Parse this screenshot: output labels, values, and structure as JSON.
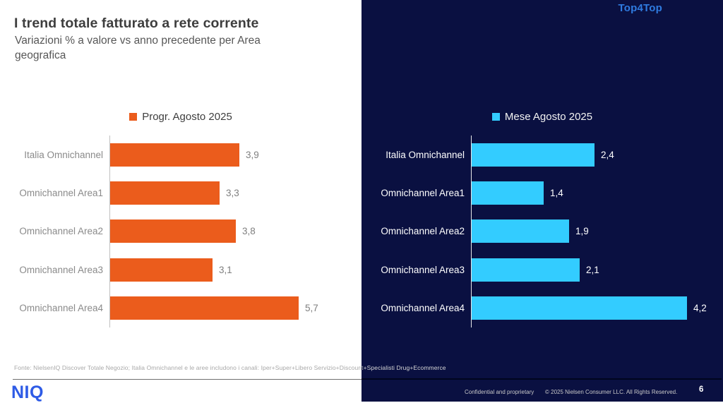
{
  "slide": {
    "title": "I trend totale fatturato a rete corrente",
    "subtitle": "Variazioni % a valore vs anno precedente per Area geografica",
    "top_right_label": "Top4Top",
    "footer_source_left": "Fonte: NielsenIQ Discover Totale Negozio; Italia Omnichannel e le aree includono i canali: Iper+Super+Libero Servizio+Discount",
    "footer_source_right": "+Specialisti Drug+Ecommerce",
    "logo_text": "NIQ",
    "confidential": "Confidential and proprietary",
    "copyright": "© 2025 Nielsen Consumer LLC. All Rights Reserved.",
    "page_number": "6"
  },
  "colors": {
    "navy_panel": "#0A1041",
    "orange_bar": "#EB5C1C",
    "cyan_bar": "#33CCFF",
    "title_text": "#3E3E3E",
    "subtitle_text": "#575757",
    "top4top_blue": "#2F7BE0",
    "niq_blue": "#2E5BE6",
    "left_axis": "#C0C0C0",
    "right_axis": "#E6E6E6",
    "gray_labels": "#8A8A8A"
  },
  "chart_data": [
    {
      "type": "bar",
      "orientation": "horizontal",
      "title": "I trend totale fatturato a rete corrente",
      "legend": "Progr. Agosto 2025",
      "legend_position": "top-center",
      "grid": false,
      "categories": [
        "Italia Omnichannel",
        "Omnichannel Area1",
        "Omnichannel Area2",
        "Omnichannel Area3",
        "Omnichannel Area4"
      ],
      "values": [
        3.9,
        3.3,
        3.8,
        3.1,
        5.7
      ],
      "value_labels": [
        "3,9",
        "3,3",
        "3,8",
        "3,1",
        "5,7"
      ],
      "bar_color": "#EB5C1C",
      "xlim": [
        0,
        7.6
      ]
    },
    {
      "type": "bar",
      "orientation": "horizontal",
      "title": "I trend totale fatturato a rete corrente",
      "legend": "Mese Agosto 2025",
      "legend_position": "top-center",
      "grid": false,
      "categories": [
        "Italia Omnichannel",
        "Omnichannel Area1",
        "Omnichannel Area2",
        "Omnichannel Area3",
        "Omnichannel Area4"
      ],
      "values": [
        2.4,
        1.4,
        1.9,
        2.1,
        4.2
      ],
      "value_labels": [
        "2,4",
        "1,4",
        "1,9",
        "2,1",
        "4,2"
      ],
      "bar_color": "#33CCFF",
      "xlim": [
        0,
        4.9
      ]
    }
  ]
}
